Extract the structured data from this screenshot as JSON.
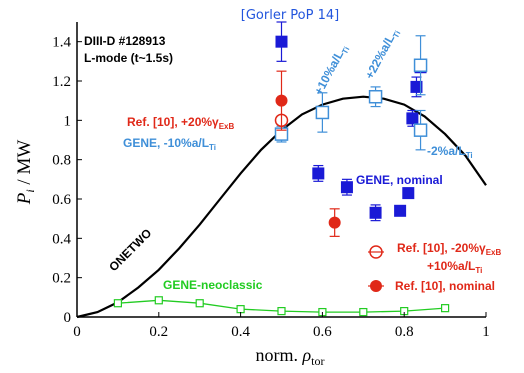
{
  "citation": "[Gorler PoP 14]",
  "chart_data": {
    "type": "scatter",
    "xlabel": "norm. ρ_tor",
    "ylabel": "P_i / MW",
    "xlim": [
      0,
      1
    ],
    "ylim": [
      0,
      1.5
    ],
    "x_ticks": [
      "0",
      "0.2",
      "0.4",
      "0.6",
      "0.8",
      "1"
    ],
    "y_ticks": [
      "0",
      "0.2",
      "0.4",
      "0.6",
      "0.8",
      "1",
      "1.2",
      "1.4"
    ],
    "grid": false,
    "annotations": {
      "shot_line1": "DIII-D #128913",
      "shot_line2": "L-mode (t~1.5s)",
      "ref_plus20": "Ref. [10], +20%γ",
      "ref_plus20_sub": "ExB",
      "gene_minus10": "GENE, -10%a/L",
      "gene_minus10_sub": "Ti",
      "plus10": "+10%a/L",
      "plus10_sub": "Ti",
      "plus22": "+22%a/L",
      "plus22_sub": "Ti",
      "minus2": "-2%a/L",
      "minus2_sub": "Ti",
      "gene_nominal": "GENE, nominal",
      "ref_minus20": "Ref. [10], -20%γ",
      "ref_minus20_sub": "ExB",
      "ref_minus20_line2": "+10%a/L",
      "ref_minus20_line2_sub": "Ti",
      "ref_nominal": "Ref. [10], nominal",
      "onetwo": "ONETWO",
      "neoclassic": "GENE-neoclassic"
    },
    "colors": {
      "gene_blue": "#1a1ad6",
      "gene_light_blue": "#3f8fd8",
      "ref_red": "#e02818",
      "neo_green": "#22cc22",
      "onetwo_black": "#000000",
      "citation_blue": "#2255dd"
    },
    "series": [
      {
        "name": "ONETWO",
        "style": "line",
        "x": [
          0.0,
          0.05,
          0.1,
          0.15,
          0.2,
          0.25,
          0.3,
          0.35,
          0.4,
          0.45,
          0.5,
          0.55,
          0.6,
          0.65,
          0.7,
          0.75,
          0.8,
          0.85,
          0.9,
          0.95,
          1.0
        ],
        "y": [
          0.0,
          0.025,
          0.075,
          0.15,
          0.24,
          0.35,
          0.47,
          0.6,
          0.73,
          0.85,
          0.95,
          1.03,
          1.08,
          1.11,
          1.12,
          1.11,
          1.08,
          1.02,
          0.93,
          0.82,
          0.67
        ]
      },
      {
        "name": "GENE, nominal",
        "style": "filled-square",
        "x": [
          0.5,
          0.5,
          0.59,
          0.66,
          0.73,
          0.79,
          0.81,
          0.82,
          0.83,
          0.84
        ],
        "y": [
          1.4,
          0.93,
          0.73,
          0.66,
          0.53,
          0.54,
          0.63,
          1.01,
          1.17,
          1.27
        ],
        "err": [
          0.1,
          0.0,
          0.04,
          0.04,
          0.04,
          0.0,
          0.0,
          0.04,
          0.05,
          0.0
        ]
      },
      {
        "name": "GENE, -10%a/L_Ti",
        "style": "open-square",
        "x": [
          0.5,
          0.6
        ],
        "y": [
          0.93,
          1.04
        ],
        "err": [
          0.04,
          0.1
        ]
      },
      {
        "name": "GENE, +10%/+22%/-2% a/L_Ti",
        "style": "open-square",
        "x": [
          0.73,
          0.84,
          0.84
        ],
        "y": [
          1.12,
          1.28,
          0.95
        ],
        "err": [
          0.05,
          0.15,
          0.1
        ]
      },
      {
        "name": "Ref. [10], +20%γ_ExB",
        "style": "open-circle",
        "x": [
          0.5
        ],
        "y": [
          1.0
        ],
        "err": [
          0.0
        ]
      },
      {
        "name": "Ref. [10], nominal",
        "style": "filled-circle",
        "x": [
          0.5,
          0.63
        ],
        "y": [
          1.1,
          0.48
        ],
        "err": [
          0.15,
          0.07
        ]
      },
      {
        "name": "GENE-neoclassic",
        "style": "open-square-line",
        "x": [
          0.1,
          0.2,
          0.3,
          0.4,
          0.5,
          0.6,
          0.7,
          0.8,
          0.9
        ],
        "y": [
          0.07,
          0.085,
          0.07,
          0.04,
          0.03,
          0.025,
          0.025,
          0.03,
          0.045
        ]
      }
    ]
  }
}
